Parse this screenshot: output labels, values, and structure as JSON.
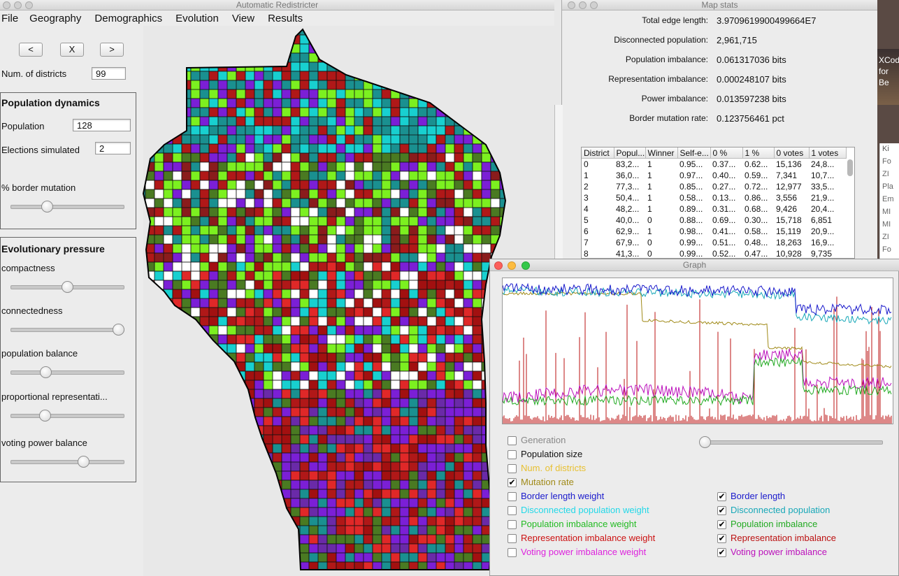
{
  "main_window": {
    "title": "Automatic Redistricter",
    "menu": [
      "File",
      "Geography",
      "Demographics",
      "Evolution",
      "View",
      "Results"
    ],
    "nav": {
      "prev": "<",
      "stop": "X",
      "next": ">"
    },
    "num_districts_label": "Num. of districts",
    "num_districts_value": "99",
    "population_dynamics": {
      "title": "Population dynamics",
      "population_label": "Population",
      "population_value": "128",
      "elections_label": "Elections simulated",
      "elections_value": "2",
      "border_mutation_label": "% border mutation",
      "border_mutation_level": 0.3
    },
    "evolutionary_pressure": {
      "title": "Evolutionary pressure",
      "sliders": [
        {
          "label": "compactness",
          "level": 0.5
        },
        {
          "label": "connectedness",
          "level": 1.0
        },
        {
          "label": "population balance",
          "level": 0.29
        },
        {
          "label": "proportional representati...",
          "level": 0.28
        },
        {
          "label": "voting power balance",
          "level": 0.66
        }
      ]
    }
  },
  "map_stats": {
    "title": "Map stats",
    "rows": [
      {
        "label": "Total edge length:",
        "value": "3.9709619900499664E7"
      },
      {
        "label": "Disconnected population:",
        "value": "2,961,715"
      },
      {
        "label": "Population imbalance:",
        "value": "0.061317036 bits"
      },
      {
        "label": "Representation imbalance:",
        "value": "0.000248107 bits"
      },
      {
        "label": "Power imbalance:",
        "value": "0.013597238 bits"
      },
      {
        "label": "Border mutation rate:",
        "value": "0.123756461 pct"
      }
    ],
    "table_headers": [
      "District",
      "Popul...",
      "Winner",
      "Self-e...",
      "0 %",
      "1 %",
      "0 votes",
      "1 votes"
    ],
    "table_rows": [
      [
        "0",
        "83,2...",
        "1",
        "0.95...",
        "0.37...",
        "0.62...",
        "15,136",
        "24,8..."
      ],
      [
        "1",
        "36,0...",
        "1",
        "0.97...",
        "0.40...",
        "0.59...",
        "7,341",
        "10,7..."
      ],
      [
        "2",
        "77,3...",
        "1",
        "0.85...",
        "0.27...",
        "0.72...",
        "12,977",
        "33,5..."
      ],
      [
        "3",
        "50,4...",
        "1",
        "0.58...",
        "0.13...",
        "0.86...",
        "3,556",
        "21,9..."
      ],
      [
        "4",
        "48,2...",
        "1",
        "0.89...",
        "0.31...",
        "0.68...",
        "9,426",
        "20,4..."
      ],
      [
        "5",
        "40,0...",
        "0",
        "0.88...",
        "0.69...",
        "0.30...",
        "15,718",
        "6,851"
      ],
      [
        "6",
        "62,9...",
        "1",
        "0.98...",
        "0.41...",
        "0.58...",
        "15,119",
        "20,9..."
      ],
      [
        "7",
        "67,9...",
        "0",
        "0.99...",
        "0.51...",
        "0.48...",
        "18,263",
        "16,9..."
      ],
      [
        "8",
        "41,3...",
        "0",
        "0.99...",
        "0.52...",
        "0.47...",
        "10,928",
        "9,735"
      ]
    ]
  },
  "graph_window": {
    "title": "Graph",
    "slider_level": 0.0,
    "left_checks": [
      {
        "label": "Generation",
        "checked": false,
        "color": "#888888"
      },
      {
        "label": "Population size",
        "checked": false,
        "color": "#111111"
      },
      {
        "label": "Num. of districts",
        "checked": false,
        "color": "#e8c030"
      },
      {
        "label": "Mutation rate",
        "checked": true,
        "color": "#a08a18"
      },
      {
        "label": "Border length weight",
        "checked": false,
        "color": "#1a1acc"
      },
      {
        "label": "Disconnected population weight",
        "checked": false,
        "color": "#22d8e8"
      },
      {
        "label": "Population imbalance weight",
        "checked": false,
        "color": "#22bb22"
      },
      {
        "label": "Representation imbalance weight",
        "checked": false,
        "color": "#cc1111"
      },
      {
        "label": "Voting power imbalance weight",
        "checked": false,
        "color": "#dd22dd"
      }
    ],
    "right_checks": [
      {
        "label": "Border length",
        "checked": true,
        "color": "#1a1acc"
      },
      {
        "label": "Disconnected population",
        "checked": true,
        "color": "#18a8b8"
      },
      {
        "label": "Population imbalance",
        "checked": true,
        "color": "#22aa22"
      },
      {
        "label": "Representation imbalance",
        "checked": true,
        "color": "#bb1111"
      },
      {
        "label": "Voting power imbalance",
        "checked": true,
        "color": "#bb11bb"
      }
    ]
  },
  "background_window": {
    "partial_text": [
      "XCode",
      "for Be"
    ],
    "side_list": [
      "Ki",
      "Fo",
      "ZI",
      "Pla",
      "Em",
      "MI",
      "MI",
      "ZI",
      "Fo"
    ]
  },
  "colors": {
    "map_palette": [
      "#7b1fd6",
      "#5a1d99",
      "#7cf020",
      "#4a7a22",
      "#18d0d0",
      "#1a9090",
      "#b01818",
      "#e02828",
      "#8a1c1c",
      "#ffffff",
      "#6a2aa8",
      "#a21010"
    ]
  }
}
